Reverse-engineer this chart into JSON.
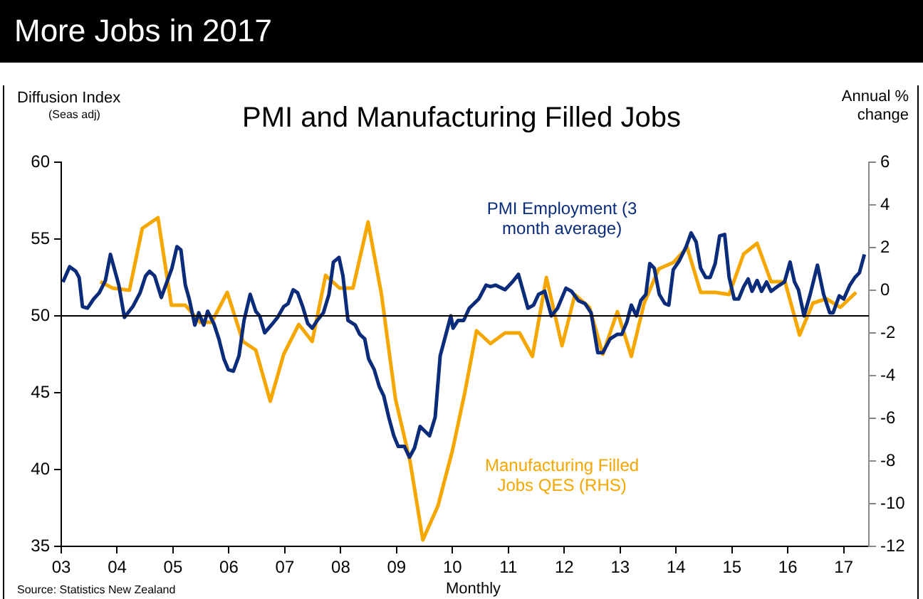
{
  "chart_data": {
    "type": "line",
    "title": "More Jobs in 2017",
    "subtitle": "PMI and Manufacturing Filled Jobs",
    "xlabel": "Monthly",
    "ylabel": "Diffusion Index",
    "y2label": "Annual % change",
    "annotations": [
      "(Seas adj)",
      "Source: Statistics New Zealand"
    ],
    "xlim": [
      2003,
      2017.45
    ],
    "xticks": [
      {
        "value": 2003,
        "label": "03"
      },
      {
        "value": 2004,
        "label": "04"
      },
      {
        "value": 2005,
        "label": "05"
      },
      {
        "value": 2006,
        "label": "06"
      },
      {
        "value": 2007,
        "label": "07"
      },
      {
        "value": 2008,
        "label": "08"
      },
      {
        "value": 2009,
        "label": "09"
      },
      {
        "value": 2010,
        "label": "10"
      },
      {
        "value": 2011,
        "label": "11"
      },
      {
        "value": 2012,
        "label": "12"
      },
      {
        "value": 2013,
        "label": "13"
      },
      {
        "value": 2014,
        "label": "14"
      },
      {
        "value": 2015,
        "label": "15"
      },
      {
        "value": 2016,
        "label": "16"
      },
      {
        "value": 2017,
        "label": "17"
      }
    ],
    "ylim": [
      35,
      60
    ],
    "yticks": [
      35,
      40,
      45,
      50,
      55,
      60
    ],
    "y2lim": [
      -12,
      6
    ],
    "y2ticks": [
      -12,
      -10,
      -8,
      -6,
      -4,
      -2,
      0,
      2,
      4,
      6
    ],
    "ref_lines": [
      {
        "axis": "y",
        "value": 50,
        "color": "#000000"
      }
    ],
    "legend": false,
    "grid": false,
    "series": [
      {
        "name": "PMI Employment (3 month average)",
        "color": "#0b2c7a",
        "axis": "y",
        "x": [
          2003.03,
          2003.15,
          2003.26,
          2003.32,
          2003.38,
          2003.47,
          2003.58,
          2003.68,
          2003.79,
          2003.88,
          2004.03,
          2004.13,
          2004.28,
          2004.41,
          2004.51,
          2004.58,
          2004.67,
          2004.79,
          2004.9,
          2004.98,
          2005.07,
          2005.14,
          2005.22,
          2005.29,
          2005.39,
          2005.46,
          2005.55,
          2005.62,
          2005.73,
          2005.82,
          2005.91,
          2005.99,
          2006.08,
          2006.18,
          2006.27,
          2006.38,
          2006.48,
          2006.55,
          2006.64,
          2006.76,
          2006.87,
          2006.98,
          2007.06,
          2007.15,
          2007.23,
          2007.32,
          2007.41,
          2007.49,
          2007.58,
          2007.69,
          2007.79,
          2007.87,
          2007.97,
          2008.04,
          2008.13,
          2008.26,
          2008.34,
          2008.43,
          2008.5,
          2008.6,
          2008.69,
          2008.77,
          2008.86,
          2008.95,
          2009.03,
          2009.14,
          2009.23,
          2009.32,
          2009.42,
          2009.59,
          2009.69,
          2009.78,
          2009.89,
          2009.97,
          2010.01,
          2010.1,
          2010.2,
          2010.3,
          2010.47,
          2010.6,
          2010.68,
          2010.77,
          2010.94,
          2011.07,
          2011.18,
          2011.35,
          2011.45,
          2011.54,
          2011.65,
          2011.77,
          2011.88,
          2012.03,
          2012.13,
          2012.25,
          2012.37,
          2012.48,
          2012.6,
          2012.69,
          2012.82,
          2012.95,
          2013.03,
          2013.12,
          2013.2,
          2013.29,
          2013.37,
          2013.46,
          2013.53,
          2013.61,
          2013.7,
          2013.8,
          2013.87,
          2013.95,
          2014.06,
          2014.18,
          2014.27,
          2014.36,
          2014.44,
          2014.53,
          2014.61,
          2014.7,
          2014.78,
          2014.87,
          2014.95,
          2015.04,
          2015.12,
          2015.21,
          2015.29,
          2015.36,
          2015.45,
          2015.53,
          2015.62,
          2015.7,
          2015.81,
          2015.94,
          2016.04,
          2016.12,
          2016.19,
          2016.29,
          2016.4,
          2016.53,
          2016.64,
          2016.75,
          2016.81,
          2016.92,
          2017.0,
          2017.11,
          2017.2,
          2017.28,
          2017.37
        ],
        "values": [
          52.2,
          53.2,
          52.9,
          52.5,
          50.6,
          50.5,
          51.1,
          51.5,
          52.3,
          54.0,
          52.0,
          49.9,
          50.6,
          51.5,
          52.6,
          52.9,
          52.6,
          51.2,
          52.3,
          53.1,
          54.5,
          54.3,
          52.0,
          51.1,
          49.4,
          50.2,
          49.4,
          50.3,
          49.5,
          48.5,
          47.2,
          46.5,
          46.4,
          47.4,
          49.7,
          51.4,
          50.3,
          50.0,
          48.9,
          49.4,
          49.9,
          50.6,
          50.8,
          51.7,
          51.5,
          50.6,
          49.5,
          49.2,
          49.7,
          50.2,
          51.4,
          53.5,
          53.8,
          52.6,
          49.7,
          49.4,
          48.8,
          48.5,
          47.2,
          46.5,
          45.4,
          44.8,
          43.4,
          42.2,
          41.5,
          41.5,
          40.8,
          41.4,
          42.8,
          42.2,
          43.4,
          47.4,
          48.9,
          50.0,
          49.2,
          49.7,
          49.7,
          50.5,
          51.1,
          52.0,
          51.9,
          52.0,
          51.7,
          52.2,
          52.7,
          50.5,
          50.7,
          51.4,
          51.6,
          50.0,
          50.5,
          51.8,
          51.6,
          51.0,
          50.8,
          50.2,
          47.6,
          47.6,
          48.5,
          48.8,
          48.8,
          49.6,
          50.7,
          50.0,
          51.0,
          51.4,
          53.4,
          53.1,
          51.4,
          50.8,
          50.7,
          53.0,
          53.6,
          54.5,
          55.4,
          54.8,
          53.1,
          52.5,
          52.5,
          53.4,
          55.2,
          55.3,
          52.5,
          51.1,
          51.1,
          51.9,
          52.4,
          51.6,
          52.3,
          51.6,
          52.2,
          51.6,
          51.9,
          52.2,
          53.5,
          52.2,
          51.7,
          50.0,
          51.4,
          53.3,
          51.4,
          50.2,
          50.2,
          51.3,
          51.1,
          52.0,
          52.5,
          52.8,
          54.0
        ]
      },
      {
        "name": "Manufacturing Filled Jobs QES (RHS)",
        "color": "#f5a700",
        "axis": "y2",
        "x": [
          2003.7,
          2003.92,
          2004.22,
          2004.45,
          2004.73,
          2004.97,
          2005.22,
          2005.48,
          2005.69,
          2005.97,
          2006.25,
          2006.48,
          2006.74,
          2006.98,
          2007.25,
          2007.49,
          2007.73,
          2007.98,
          2008.22,
          2008.49,
          2008.73,
          2008.98,
          2009.24,
          2009.47,
          2009.74,
          2010.0,
          2010.22,
          2010.43,
          2010.68,
          2010.94,
          2011.2,
          2011.43,
          2011.68,
          2011.96,
          2012.19,
          2012.45,
          2012.69,
          2012.95,
          2013.2,
          2013.43,
          2013.69,
          2013.95,
          2014.2,
          2014.44,
          2014.7,
          2014.95,
          2015.21,
          2015.45,
          2015.7,
          2015.95,
          2016.21,
          2016.45,
          2016.69,
          2016.94,
          2017.22
        ],
        "values": [
          0.4,
          0.1,
          0.0,
          2.9,
          3.4,
          -0.7,
          -0.7,
          -1.5,
          -1.5,
          -0.1,
          -2.4,
          -2.8,
          -5.2,
          -3.0,
          -1.6,
          -2.4,
          0.7,
          0.1,
          0.1,
          3.2,
          -0.2,
          -5.1,
          -8.0,
          -11.7,
          -10.1,
          -7.5,
          -4.8,
          -1.9,
          -2.5,
          -2.0,
          -2.0,
          -3.1,
          0.6,
          -2.6,
          -0.2,
          -0.8,
          -3.0,
          -1.0,
          -3.1,
          -0.6,
          1.0,
          1.3,
          2.0,
          -0.1,
          -0.1,
          -0.2,
          1.7,
          2.2,
          0.4,
          0.4,
          -2.1,
          -0.6,
          -0.4,
          -0.8,
          -0.1
        ]
      }
    ]
  }
}
